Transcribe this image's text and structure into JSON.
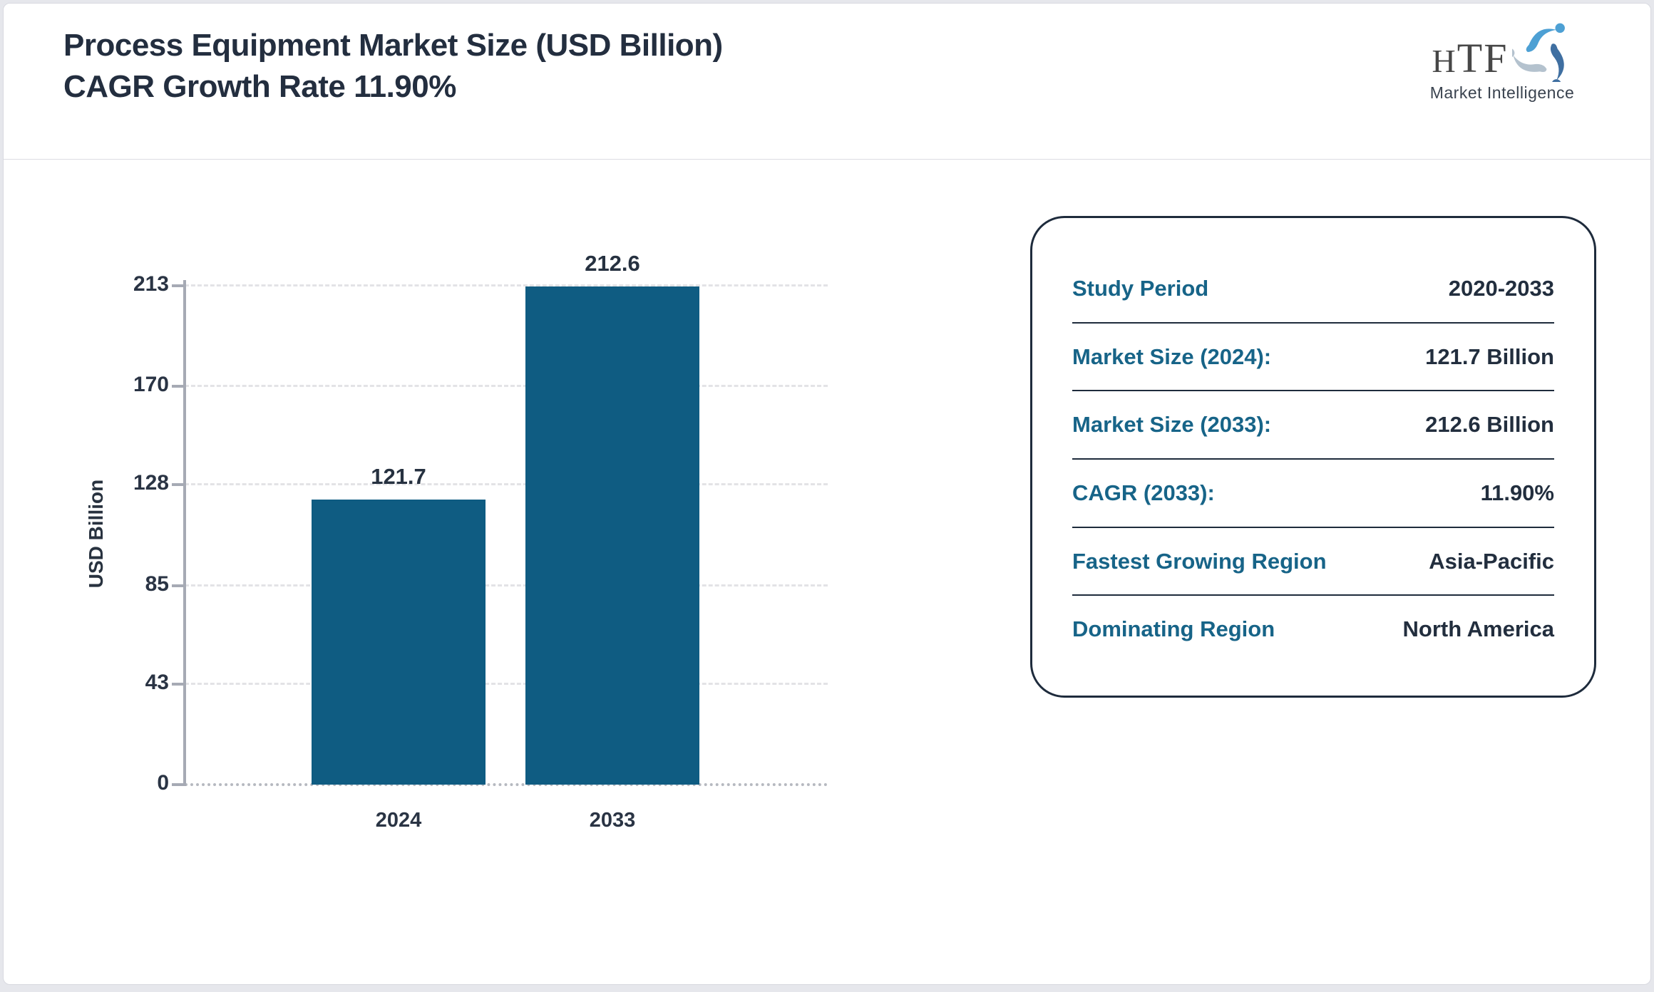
{
  "header": {
    "title_line1": "Process Equipment Market Size (USD Billion)",
    "title_line2": "CAGR Growth Rate 11.90%",
    "logo": {
      "text_h": "H",
      "text_tf": "TF",
      "subtext": "Market Intelligence",
      "mark_icon": "htf-swirl-people-icon",
      "mark_colors": [
        "#4da0d4",
        "#3f6fa1",
        "#b4c2ce"
      ]
    }
  },
  "chart_data": {
    "type": "bar",
    "categories": [
      "2024",
      "2033"
    ],
    "values": [
      121.7,
      212.6
    ],
    "bar_labels": [
      "121.7",
      "212.6"
    ],
    "title": "",
    "xlabel": "",
    "ylabel": "USD Billion",
    "yticks": [
      0,
      43,
      85,
      128,
      170,
      213
    ],
    "ylim": [
      0,
      213
    ],
    "grid": "horizontal-dashed",
    "legend": "none",
    "bar_color": "#0f5c82"
  },
  "info_panel": {
    "rows": [
      {
        "label": "Study Period",
        "value": "2020-2033"
      },
      {
        "label": "Market Size (2024):",
        "value": "121.7 Billion"
      },
      {
        "label": "Market Size (2033):",
        "value": "212.6 Billion"
      },
      {
        "label": "CAGR (2033):",
        "value": "11.90%"
      },
      {
        "label": "Fastest Growing Region",
        "value": "Asia-Pacific"
      },
      {
        "label": "Dominating Region",
        "value": "North America"
      }
    ]
  },
  "colors": {
    "bar": "#0f5c82",
    "label_teal": "#176488",
    "text_navy": "#232e3f",
    "axis_gray": "#a6aab4",
    "page_background": "#e6e7ec"
  }
}
